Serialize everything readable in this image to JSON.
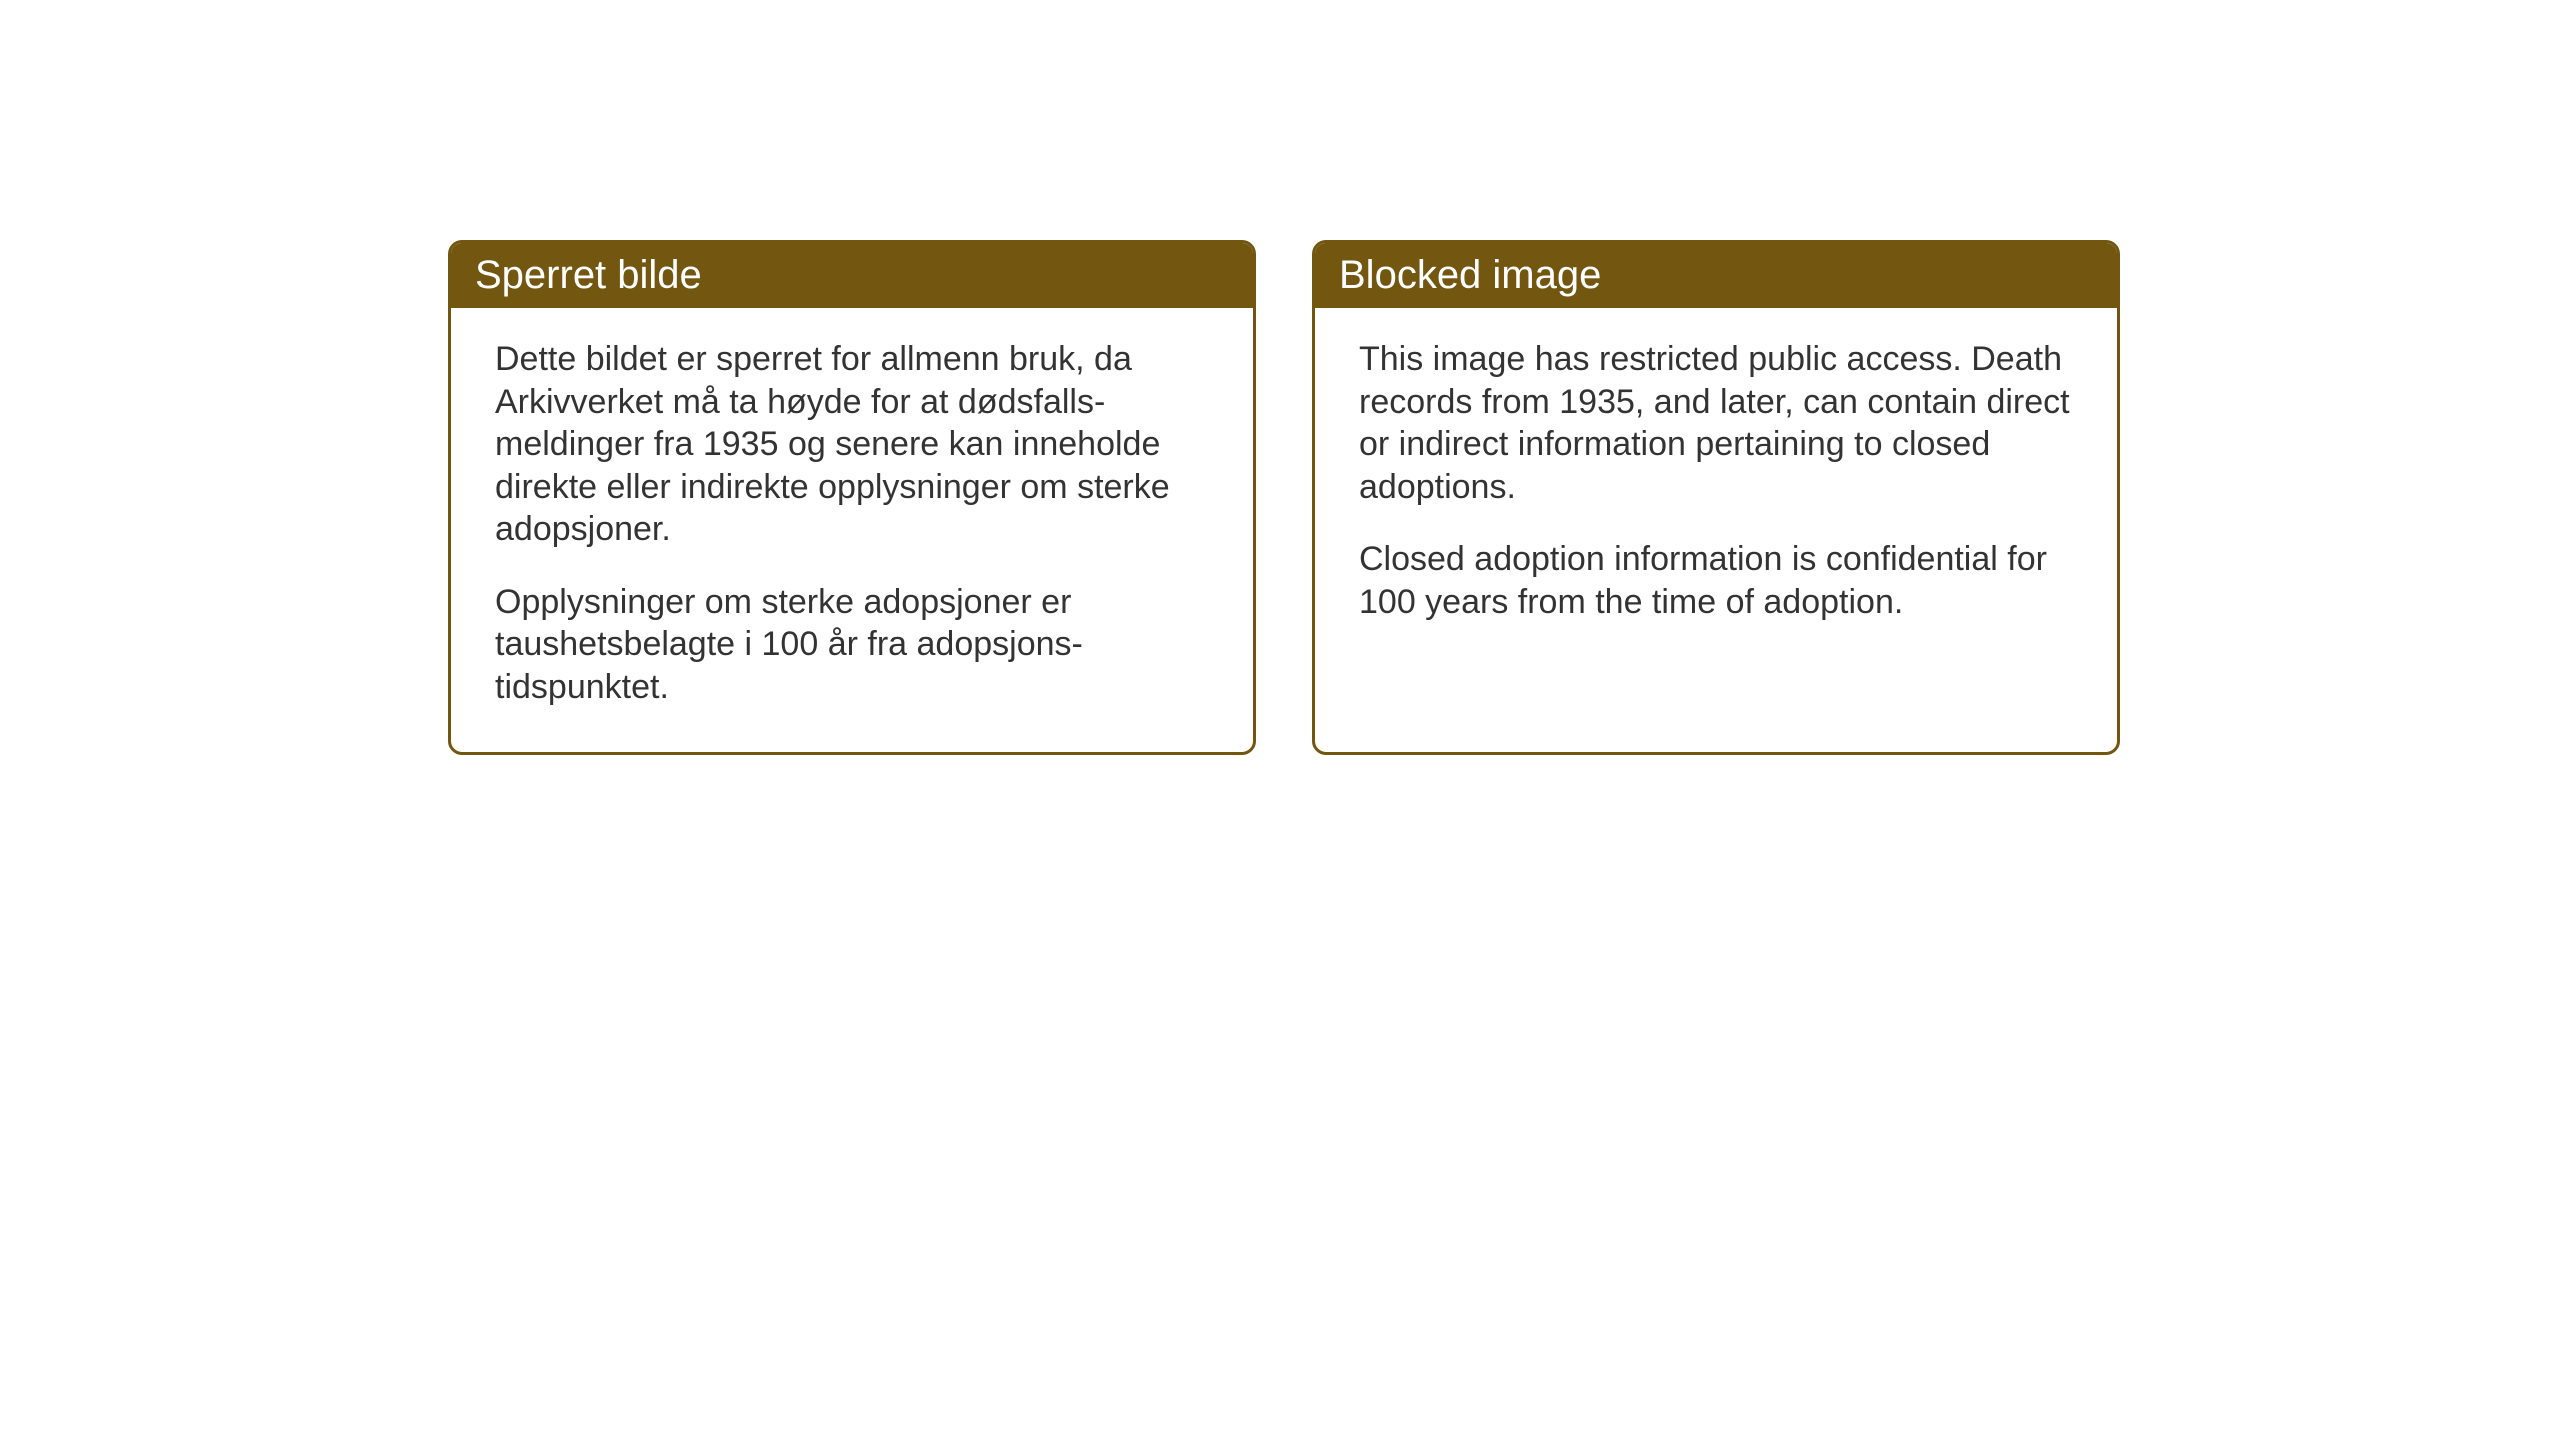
{
  "cards": [
    {
      "title": "Sperret bilde",
      "paragraph1": "Dette bildet er sperret for allmenn bruk, da Arkivverket må ta høyde for at dødsfalls-meldinger fra 1935 og senere kan inneholde direkte eller indirekte opplysninger om sterke adopsjoner.",
      "paragraph2": "Opplysninger om sterke adopsjoner er taushetsbelagte i 100 år fra adopsjons-tidspunktet."
    },
    {
      "title": "Blocked image",
      "paragraph1": "This image has restricted public access. Death records from 1935, and later, can contain direct or indirect information pertaining to closed adoptions.",
      "paragraph2": "Closed adoption information is confidential for 100 years from the time of adoption."
    }
  ],
  "styling": {
    "header_bg_color": "#735711",
    "header_text_color": "#ffffff",
    "border_color": "#735711",
    "body_text_color": "#333333",
    "page_bg_color": "#ffffff",
    "title_fontsize": 40,
    "body_fontsize": 34,
    "border_radius": 14,
    "border_width": 3
  }
}
